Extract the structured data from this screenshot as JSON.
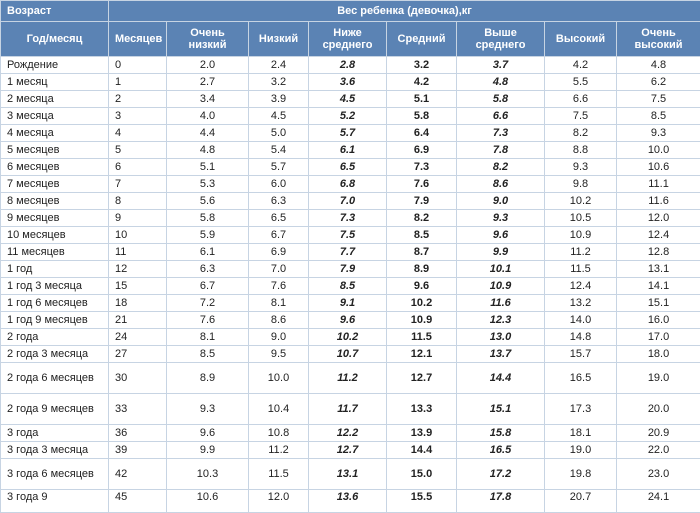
{
  "header": {
    "age_label": "Возраст",
    "weight_label": "Вес ребенка (девочка),кг",
    "columns": [
      "Год/месяц",
      "Месяцев",
      "Очень низкий",
      "Низкий",
      "Ниже среднего",
      "Средний",
      "Выше среднего",
      "Высокий",
      "Очень высокий"
    ]
  },
  "rows": [
    [
      "Рождение",
      "0",
      "2.0",
      "2.4",
      "2.8",
      "3.2",
      "3.7",
      "4.2",
      "4.8"
    ],
    [
      "1 месяц",
      "1",
      "2.7",
      "3.2",
      "3.6",
      "4.2",
      "4.8",
      "5.5",
      "6.2"
    ],
    [
      "2 месяца",
      "2",
      "3.4",
      "3.9",
      "4.5",
      "5.1",
      "5.8",
      "6.6",
      "7.5"
    ],
    [
      "3 месяца",
      "3",
      "4.0",
      "4.5",
      "5.2",
      "5.8",
      "6.6",
      "7.5",
      "8.5"
    ],
    [
      "4 месяца",
      "4",
      "4.4",
      "5.0",
      "5.7",
      "6.4",
      "7.3",
      "8.2",
      "9.3"
    ],
    [
      "5 месяцев",
      "5",
      "4.8",
      "5.4",
      "6.1",
      "6.9",
      "7.8",
      "8.8",
      "10.0"
    ],
    [
      "6 месяцев",
      "6",
      "5.1",
      "5.7",
      "6.5",
      "7.3",
      "8.2",
      "9.3",
      "10.6"
    ],
    [
      "7 месяцев",
      "7",
      "5.3",
      "6.0",
      "6.8",
      "7.6",
      "8.6",
      "9.8",
      "11.1"
    ],
    [
      "8 месяцев",
      "8",
      "5.6",
      "6.3",
      "7.0",
      "7.9",
      "9.0",
      "10.2",
      "11.6"
    ],
    [
      "9 месяцев",
      "9",
      "5.8",
      "6.5",
      "7.3",
      "8.2",
      "9.3",
      "10.5",
      "12.0"
    ],
    [
      "10 месяцев",
      "10",
      "5.9",
      "6.7",
      "7.5",
      "8.5",
      "9.6",
      "10.9",
      "12.4"
    ],
    [
      "11 месяцев",
      "11",
      "6.1",
      "6.9",
      "7.7",
      "8.7",
      "9.9",
      "11.2",
      "12.8"
    ],
    [
      "1 год",
      "12",
      "6.3",
      "7.0",
      "7.9",
      "8.9",
      "10.1",
      "11.5",
      "13.1"
    ],
    [
      "1 год 3 месяца",
      "15",
      "6.7",
      "7.6",
      "8.5",
      "9.6",
      "10.9",
      "12.4",
      "14.1"
    ],
    [
      "1 год 6 месяцев",
      "18",
      "7.2",
      "8.1",
      "9.1",
      "10.2",
      "11.6",
      "13.2",
      "15.1"
    ],
    [
      "1 год 9 месяцев",
      "21",
      "7.6",
      "8.6",
      "9.6",
      "10.9",
      "12.3",
      "14.0",
      "16.0"
    ],
    [
      "2 года",
      "24",
      "8.1",
      "9.0",
      "10.2",
      "11.5",
      "13.0",
      "14.8",
      "17.0"
    ],
    [
      "2 года 3 месяца",
      "27",
      "8.5",
      "9.5",
      "10.7",
      "12.1",
      "13.7",
      "15.7",
      "18.0"
    ],
    [
      "2 года 6 месяцев",
      "30",
      "8.9",
      "10.0",
      "11.2",
      "12.7",
      "14.4",
      "16.5",
      "19.0"
    ],
    [
      "2 года 9 месяцев",
      "33",
      "9.3",
      "10.4",
      "11.7",
      "13.3",
      "15.1",
      "17.3",
      "20.0"
    ],
    [
      "3 года",
      "36",
      "9.6",
      "10.8",
      "12.2",
      "13.9",
      "15.8",
      "18.1",
      "20.9"
    ],
    [
      "3 года 3 месяца",
      "39",
      "9.9",
      "11.2",
      "12.7",
      "14.4",
      "16.5",
      "19.0",
      "22.0"
    ],
    [
      "3 года 6 месяцев",
      "42",
      "10.3",
      "11.5",
      "13.1",
      "15.0",
      "17.2",
      "19.8",
      "23.0"
    ],
    [
      "3 года 9",
      "45",
      "10.6",
      "12.0",
      "13.6",
      "15.5",
      "17.8",
      "20.7",
      "24.1"
    ]
  ]
}
